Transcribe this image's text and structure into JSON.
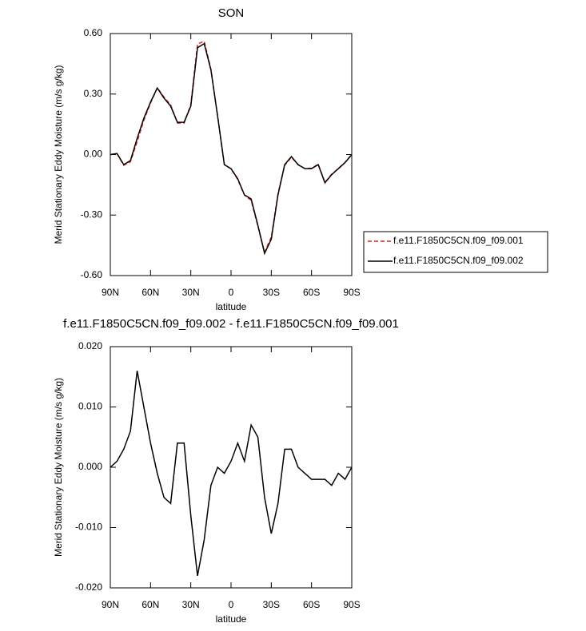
{
  "chart_data": [
    {
      "type": "line",
      "title": "SON",
      "xlabel": "latitude",
      "ylabel": "Merid Stationary Eddy Moisture (m/s g/kg)",
      "x": [
        90,
        85,
        80,
        75,
        70,
        65,
        60,
        55,
        50,
        45,
        40,
        35,
        30,
        25,
        20,
        15,
        10,
        5,
        0,
        -5,
        -10,
        -15,
        -20,
        -25,
        -30,
        -35,
        -40,
        -45,
        -50,
        -55,
        -60,
        -65,
        -70,
        -75,
        -80,
        -85,
        -90
      ],
      "series": [
        {
          "name": "f.e11.F1850C5CN.f09_f09.001",
          "color": "#e8231f",
          "dashed": true,
          "values": [
            0.0,
            0.004,
            -0.053,
            -0.036,
            0.064,
            0.17,
            0.256,
            0.331,
            0.285,
            0.246,
            0.156,
            0.156,
            0.248,
            0.548,
            0.562,
            0.423,
            0.19,
            -0.049,
            -0.071,
            -0.124,
            -0.201,
            -0.227,
            -0.355,
            -0.485,
            -0.409,
            -0.194,
            -0.053,
            -0.013,
            -0.05,
            -0.069,
            -0.068,
            -0.048,
            -0.138,
            -0.097,
            -0.069,
            -0.038,
            0.0
          ]
        },
        {
          "name": "f.e11.F1850C5CN.f09_f09.002",
          "color": "#000000",
          "dashed": false,
          "values": [
            0.0,
            0.005,
            -0.05,
            -0.03,
            0.08,
            0.18,
            0.26,
            0.33,
            0.28,
            0.24,
            0.16,
            0.16,
            0.24,
            0.53,
            0.55,
            0.42,
            0.19,
            -0.05,
            -0.07,
            -0.12,
            -0.2,
            -0.22,
            -0.35,
            -0.49,
            -0.42,
            -0.2,
            -0.05,
            -0.01,
            -0.05,
            -0.07,
            -0.07,
            -0.05,
            -0.14,
            -0.1,
            -0.07,
            -0.04,
            0.0
          ]
        }
      ],
      "xlim": [
        90,
        -90
      ],
      "xticks": [
        {
          "value": 90,
          "label": "90N"
        },
        {
          "value": 60,
          "label": "60N"
        },
        {
          "value": 30,
          "label": "30N"
        },
        0,
        {
          "value": -30,
          "label": "30S"
        },
        {
          "value": -60,
          "label": "60S"
        },
        {
          "value": -90,
          "label": "90S"
        }
      ],
      "ylim": [
        -0.6,
        0.6
      ],
      "yticks": [
        {
          "value": 0.6,
          "label": "0.60"
        },
        {
          "value": 0.3,
          "label": "0.30"
        },
        {
          "value": 0,
          "label": "0.00"
        },
        {
          "value": -0.3,
          "label": "-0.30"
        },
        {
          "value": -0.6,
          "label": "-0.60"
        }
      ],
      "legend": "right"
    },
    {
      "type": "line",
      "title": "f.e11.F1850C5CN.f09_f09.002 - f.e11.F1850C5CN.f09_f09.001",
      "xlabel": "latitude",
      "ylabel": "Merid Stationary Eddy Moisture (m/s g/kg)",
      "x": [
        90,
        85,
        80,
        75,
        70,
        65,
        60,
        55,
        50,
        45,
        40,
        35,
        30,
        25,
        20,
        15,
        10,
        5,
        0,
        -5,
        -10,
        -15,
        -20,
        -25,
        -30,
        -35,
        -40,
        -45,
        -50,
        -55,
        -60,
        -65,
        -70,
        -75,
        -80,
        -85,
        -90
      ],
      "values": [
        0.0,
        0.001,
        0.003,
        0.006,
        0.016,
        0.01,
        0.004,
        -0.001,
        -0.005,
        -0.006,
        0.004,
        0.004,
        -0.008,
        -0.018,
        -0.012,
        -0.003,
        0.0,
        -0.001,
        0.001,
        0.004,
        0.001,
        0.007,
        0.005,
        -0.005,
        -0.011,
        -0.006,
        0.003,
        0.003,
        0.0,
        -0.001,
        -0.002,
        -0.002,
        -0.002,
        -0.003,
        -0.001,
        -0.002,
        0.0
      ],
      "color": "#000000",
      "xlim": [
        90,
        -90
      ],
      "xticks": [
        {
          "value": 90,
          "label": "90N"
        },
        {
          "value": 60,
          "label": "60N"
        },
        {
          "value": 30,
          "label": "30N"
        },
        0,
        {
          "value": -30,
          "label": "30S"
        },
        {
          "value": -60,
          "label": "60S"
        },
        {
          "value": -90,
          "label": "90S"
        }
      ],
      "ylim": [
        -0.02,
        0.02
      ],
      "yticks": [
        {
          "value": 0.02,
          "label": "0.020"
        },
        {
          "value": 0.01,
          "label": "0.010"
        },
        {
          "value": 0,
          "label": "0.000"
        },
        {
          "value": -0.01,
          "label": "-0.010"
        },
        {
          "value": -0.02,
          "label": "-0.020"
        }
      ]
    }
  ]
}
